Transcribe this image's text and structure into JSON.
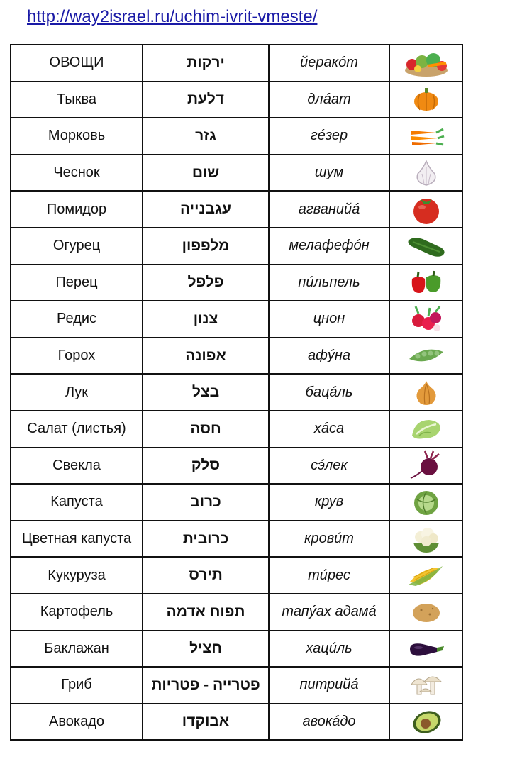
{
  "header": {
    "url": "http://way2israel.ru/uchim-ivrit-vmeste/"
  },
  "rows": [
    {
      "ru": "ОВОЩИ",
      "he": "ירקות",
      "tr": "йеракóт",
      "icon": "vegetables-basket-icon"
    },
    {
      "ru": "Тыква",
      "he": "דלעת",
      "tr": "длáат",
      "icon": "pumpkin-icon"
    },
    {
      "ru": "Морковь",
      "he": "גזר",
      "tr": "гéзер",
      "icon": "carrot-icon"
    },
    {
      "ru": "Чеснок",
      "he": "שום",
      "tr": "шум",
      "icon": "garlic-icon"
    },
    {
      "ru": "Помидор",
      "he": "עגבנייה",
      "tr": "агванийá",
      "icon": "tomato-icon"
    },
    {
      "ru": "Огурец",
      "he": "מלפפון",
      "tr": "мелафефóн",
      "icon": "cucumber-icon"
    },
    {
      "ru": "Перец",
      "he": "פלפל",
      "tr": "пи́льпель",
      "icon": "pepper-icon"
    },
    {
      "ru": "Редис",
      "he": "צנון",
      "tr": "цнон",
      "icon": "radish-icon"
    },
    {
      "ru": "Горох",
      "he": "אפונה",
      "tr": "афýна",
      "icon": "peas-icon"
    },
    {
      "ru": "Лук",
      "he": "בצל",
      "tr": "бацáль",
      "icon": "onion-icon"
    },
    {
      "ru": "Салат (листья)",
      "he": "חסה",
      "tr": "хáса",
      "icon": "lettuce-icon"
    },
    {
      "ru": "Свекла",
      "he": "סלק",
      "tr": "сэ́лек",
      "icon": "beet-icon"
    },
    {
      "ru": "Капуста",
      "he": "כרוב",
      "tr": "крув",
      "icon": "cabbage-icon"
    },
    {
      "ru": "Цветная капуста",
      "he": "כרובית",
      "tr": "крови́т",
      "icon": "cauliflower-icon"
    },
    {
      "ru": "Кукуруза",
      "he": "תירס",
      "tr": "ти́рес",
      "icon": "corn-icon"
    },
    {
      "ru": "Картофель",
      "he": "תפוח אדמה",
      "tr": "тапýах адамá",
      "icon": "potato-icon"
    },
    {
      "ru": "Баклажан",
      "he": "חציל",
      "tr": "хаци́ль",
      "icon": "eggplant-icon"
    },
    {
      "ru": "Гриб",
      "he": "פטרייה - פטריות",
      "tr": "питрийá",
      "icon": "mushroom-icon"
    },
    {
      "ru": "Авокадо",
      "he": "אבוקדו",
      "tr": "авокáдо",
      "icon": "avocado-icon"
    }
  ]
}
